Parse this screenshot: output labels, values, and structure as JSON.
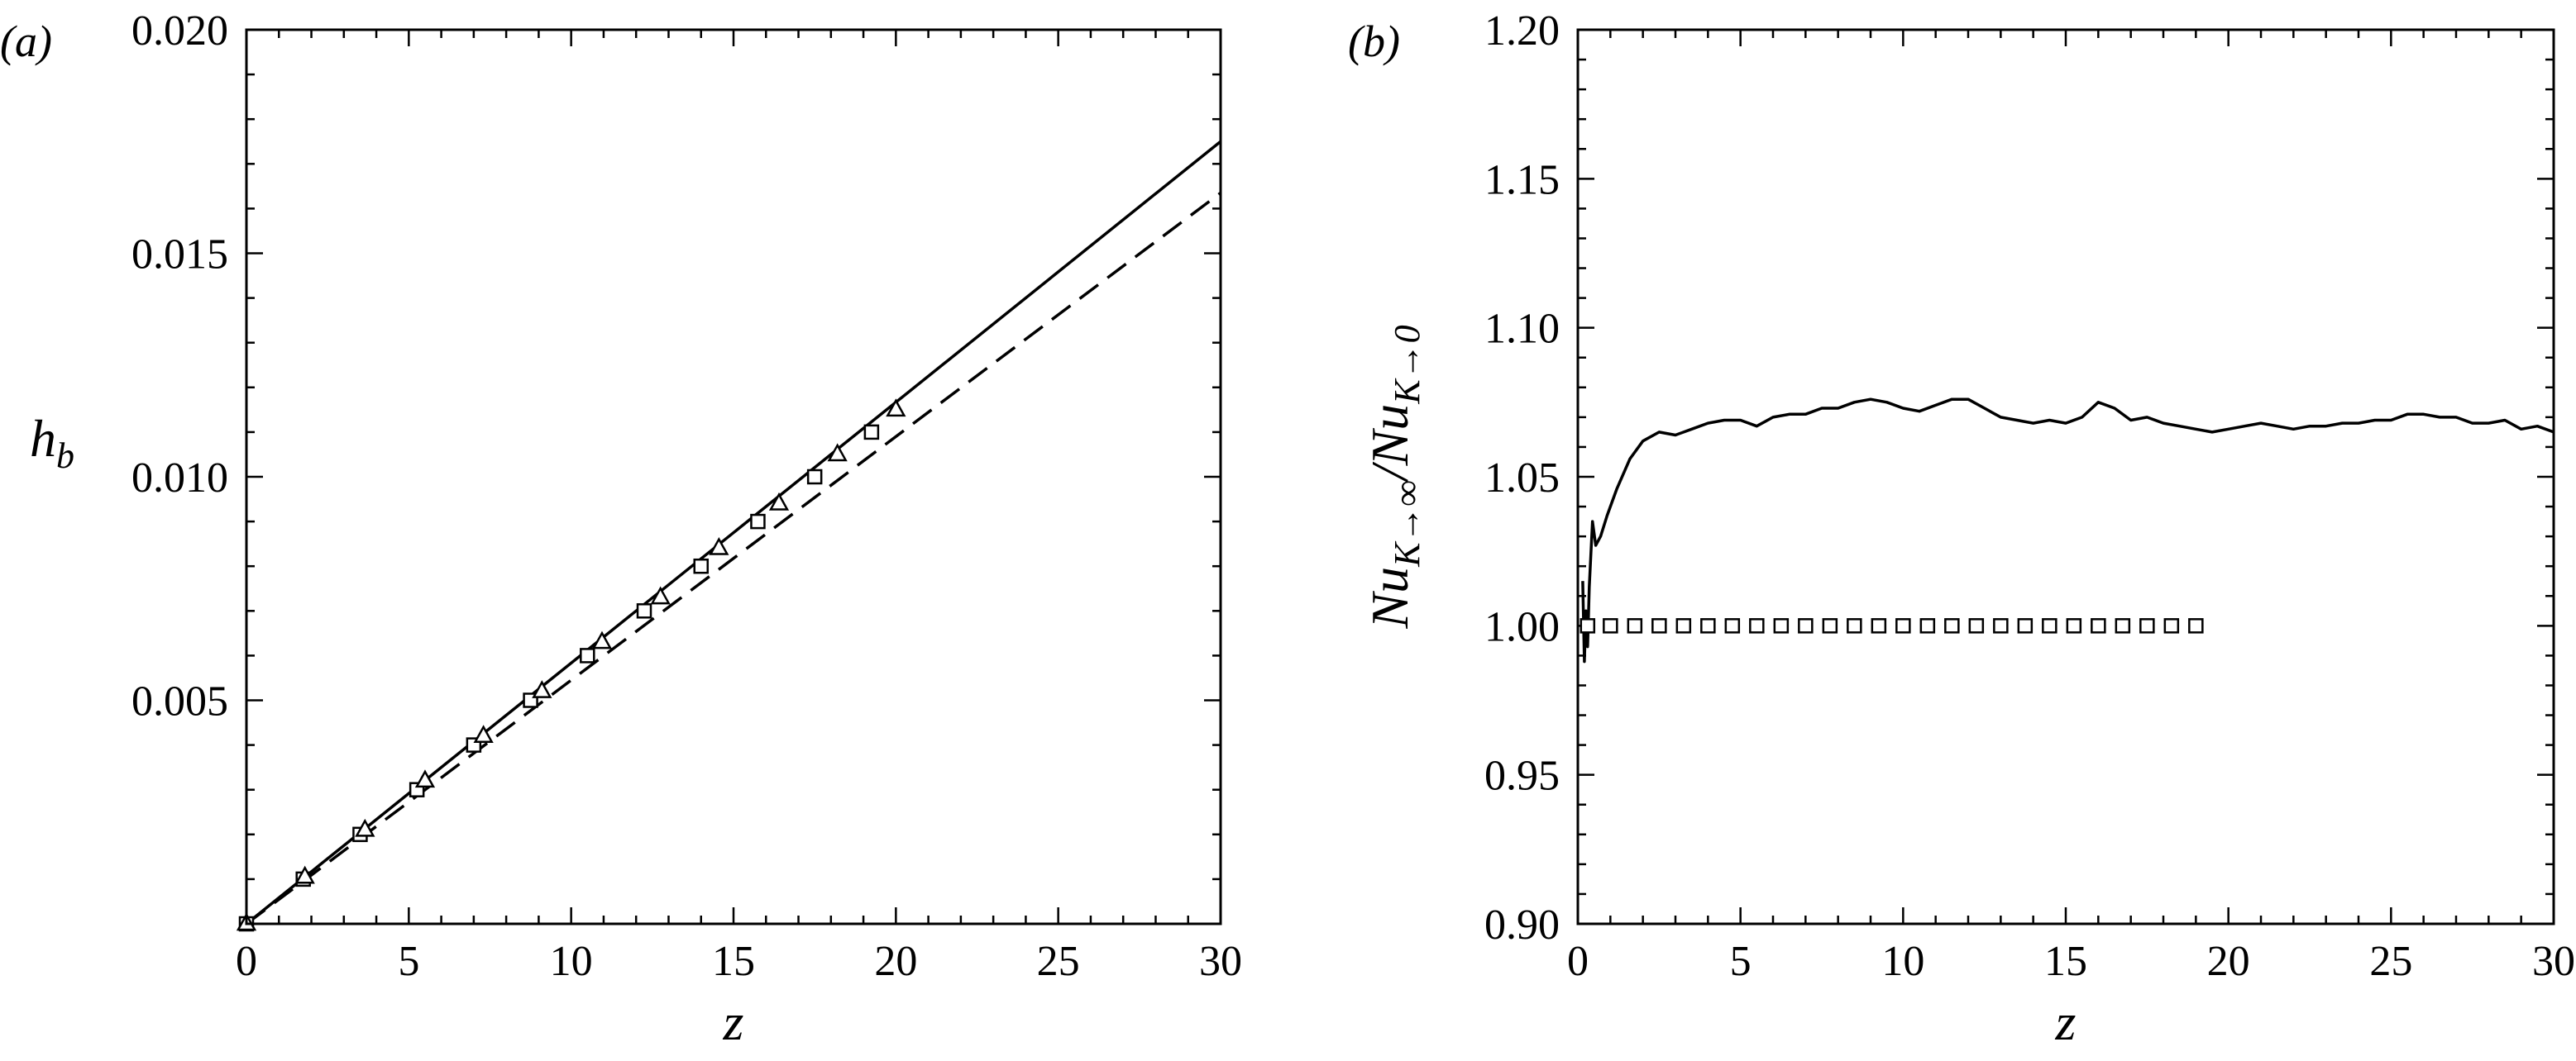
{
  "chart_data": [
    {
      "type": "line",
      "panel_label": "(a)",
      "xlabel": "z",
      "ylabel": "h",
      "ylabel_sub": "b",
      "xlim": [
        0,
        30
      ],
      "ylim": [
        0,
        0.02
      ],
      "xticks": [
        0,
        5,
        10,
        15,
        20,
        25,
        30
      ],
      "xtick_labels": [
        "0",
        "5",
        "10",
        "15",
        "20",
        "25",
        "30"
      ],
      "yticks": [
        0.005,
        0.01,
        0.015,
        0.02
      ],
      "ytick_labels": [
        "0.005",
        "0.010",
        "0.015",
        "0.020"
      ],
      "series": [
        {
          "name": "solid",
          "style": "solid",
          "x": [
            0,
            30
          ],
          "y": [
            0,
            0.0175
          ]
        },
        {
          "name": "dashed",
          "style": "dashed",
          "x": [
            0,
            30
          ],
          "y": [
            0,
            0.01635
          ]
        },
        {
          "name": "squares",
          "style": "marker-square",
          "x": [
            0,
            1.75,
            3.5,
            5.25,
            7.0,
            8.75,
            10.5,
            12.25,
            14.0,
            15.75,
            17.5,
            19.25
          ],
          "y": [
            0,
            0.001,
            0.002,
            0.003,
            0.004,
            0.005,
            0.006,
            0.007,
            0.008,
            0.009,
            0.01,
            0.011
          ]
        },
        {
          "name": "triangles",
          "style": "marker-triangle",
          "x": [
            0,
            1.8,
            3.65,
            5.5,
            7.3,
            9.1,
            10.95,
            12.75,
            14.55,
            16.4,
            18.2,
            20.0
          ],
          "y": [
            0,
            0.00105,
            0.0021,
            0.0032,
            0.0042,
            0.0052,
            0.0063,
            0.0073,
            0.0084,
            0.0094,
            0.0105,
            0.0115
          ]
        }
      ]
    },
    {
      "type": "line",
      "panel_label": "(b)",
      "xlabel": "z",
      "ylabel": "Nu_{K→∞}/Nu_{K→0}",
      "ylabel_parts": {
        "base": "Nu",
        "sub1": "K→∞",
        "slash": "/",
        "sub2": "K→0"
      },
      "xlim": [
        0,
        30
      ],
      "ylim": [
        0.9,
        1.2
      ],
      "xticks": [
        0,
        5,
        10,
        15,
        20,
        25,
        30
      ],
      "xtick_labels": [
        "0",
        "5",
        "10",
        "15",
        "20",
        "25",
        "30"
      ],
      "yticks": [
        0.9,
        0.95,
        1.0,
        1.05,
        1.1,
        1.15,
        1.2
      ],
      "ytick_labels": [
        "0.90",
        "0.95",
        "1.00",
        "1.05",
        "1.10",
        "1.15",
        "1.20"
      ],
      "series": [
        {
          "name": "solid",
          "style": "solid",
          "x": [
            0.15,
            0.2,
            0.25,
            0.3,
            0.35,
            0.45,
            0.55,
            0.7,
            0.9,
            1.2,
            1.6,
            2.0,
            2.5,
            3.0,
            3.5,
            4.0,
            4.5,
            5.0,
            5.5,
            6.0,
            6.5,
            7.0,
            7.5,
            8.0,
            8.5,
            9.0,
            9.5,
            10.0,
            10.5,
            11.0,
            11.5,
            12.0,
            12.5,
            13.0,
            13.5,
            14.0,
            14.5,
            15.0,
            15.5,
            16.0,
            16.5,
            17.0,
            17.5,
            18.0,
            18.5,
            19.0,
            19.5,
            20.0,
            20.5,
            21.0,
            21.5,
            22.0,
            22.5,
            23.0,
            23.5,
            24.0,
            24.5,
            25.0,
            25.5,
            26.0,
            26.5,
            27.0,
            27.5,
            28.0,
            28.5,
            29.0,
            29.5,
            30.0
          ],
          "y": [
            1.015,
            0.988,
            1.005,
            0.993,
            1.013,
            1.035,
            1.027,
            1.03,
            1.037,
            1.046,
            1.056,
            1.062,
            1.065,
            1.064,
            1.066,
            1.068,
            1.069,
            1.069,
            1.067,
            1.07,
            1.071,
            1.071,
            1.073,
            1.073,
            1.075,
            1.076,
            1.075,
            1.073,
            1.072,
            1.074,
            1.076,
            1.076,
            1.073,
            1.07,
            1.069,
            1.068,
            1.069,
            1.068,
            1.07,
            1.075,
            1.073,
            1.069,
            1.07,
            1.068,
            1.067,
            1.066,
            1.065,
            1.066,
            1.067,
            1.068,
            1.067,
            1.066,
            1.067,
            1.067,
            1.068,
            1.068,
            1.069,
            1.069,
            1.071,
            1.071,
            1.07,
            1.07,
            1.068,
            1.068,
            1.069,
            1.066,
            1.067,
            1.065
          ]
        },
        {
          "name": "squares",
          "style": "marker-square",
          "x": [
            0.3,
            1.0,
            1.75,
            2.5,
            3.25,
            4.0,
            4.75,
            5.5,
            6.25,
            7.0,
            7.75,
            8.5,
            9.25,
            10.0,
            10.75,
            11.5,
            12.25,
            13.0,
            13.75,
            14.5,
            15.25,
            16.0,
            16.75,
            17.5,
            18.25,
            19.0
          ],
          "y": [
            1.0,
            1.0,
            1.0,
            1.0,
            1.0,
            1.0,
            1.0,
            1.0,
            1.0,
            1.0,
            1.0,
            1.0,
            1.0,
            1.0,
            1.0,
            1.0,
            1.0,
            1.0,
            1.0,
            1.0,
            1.0,
            1.0,
            1.0,
            1.0,
            1.0,
            1.0
          ]
        }
      ]
    }
  ]
}
